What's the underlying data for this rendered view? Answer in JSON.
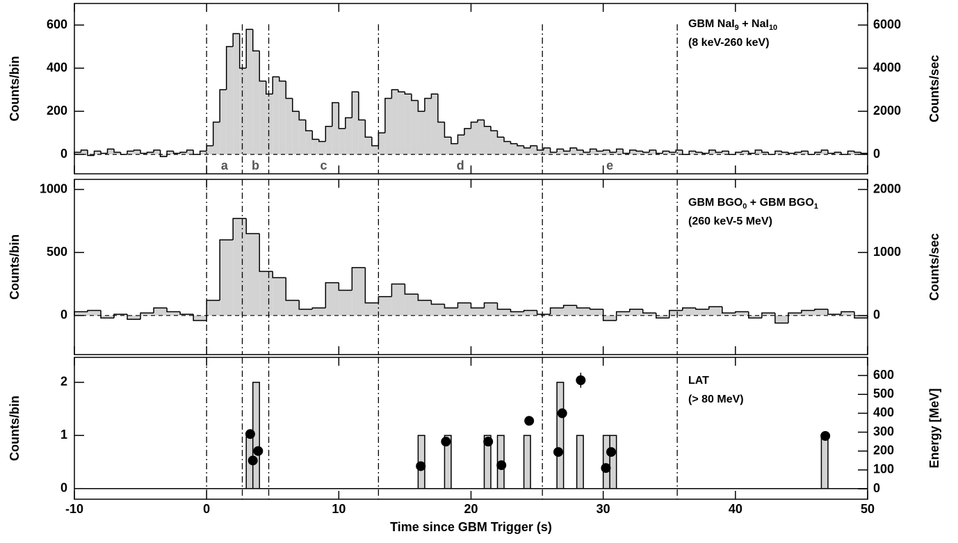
{
  "chart_data": [
    {
      "type": "histogram",
      "label": [
        {
          "text": "GBM NaI"
        },
        {
          "text": "9",
          "sub": true
        },
        {
          "text": " + NaI"
        },
        {
          "text": "10",
          "sub": true
        }
      ],
      "sublabel": "(8 keV-260 keV)",
      "ylabel": "Counts/bin",
      "y2label": "Counts/sec",
      "xlim": [
        -10,
        50
      ],
      "xticks": [
        -10,
        0,
        10,
        20,
        30,
        40,
        50
      ],
      "ylim": [
        -90,
        700
      ],
      "yticks": [
        0,
        200,
        400,
        600
      ],
      "y2lim": [
        -900,
        7000
      ],
      "y2ticks": [
        0,
        2000,
        4000,
        6000
      ],
      "color": "#d3d3d3",
      "intervals": {
        "edges": [
          0,
          2.7,
          4.7,
          13,
          25.4,
          35.6
        ],
        "labels": [
          "a",
          "b",
          "c",
          "d",
          "e"
        ]
      },
      "bins": [
        -10,
        -9.5,
        -9,
        -8.5,
        -8,
        -7.5,
        -7,
        -6.5,
        -6,
        -5.5,
        -5,
        -4.5,
        -4,
        -3.5,
        -3,
        -2.5,
        -2,
        -1.5,
        -1,
        -0.5,
        0,
        0.5,
        1,
        1.5,
        2,
        2.5,
        3,
        3.5,
        4,
        4.5,
        5,
        5.5,
        6,
        6.5,
        7,
        7.5,
        8,
        8.5,
        9,
        9.5,
        10,
        10.5,
        11,
        11.5,
        12,
        12.5,
        13,
        13.5,
        14,
        14.5,
        15,
        15.5,
        16,
        16.5,
        17,
        17.5,
        18,
        18.5,
        19,
        19.5,
        20,
        20.5,
        21,
        21.5,
        22,
        22.5,
        23,
        23.5,
        24,
        24.5,
        25,
        25.5,
        26,
        26.5,
        27,
        27.5,
        28,
        28.5,
        29,
        29.5,
        30,
        30.5,
        31,
        31.5,
        32,
        32.5,
        33,
        33.5,
        34,
        34.5,
        35,
        35.5,
        36,
        36.5,
        37,
        37.5,
        38,
        38.5,
        39,
        39.5,
        40,
        40.5,
        41,
        41.5,
        42,
        42.5,
        43,
        43.5,
        44,
        44.5,
        45,
        45.5,
        46,
        46.5,
        47,
        47.5,
        48,
        48.5,
        49,
        49.5,
        50
      ],
      "values": [
        10,
        20,
        -5,
        15,
        5,
        25,
        10,
        0,
        15,
        20,
        5,
        10,
        20,
        -10,
        15,
        5,
        10,
        20,
        0,
        15,
        40,
        150,
        300,
        500,
        560,
        400,
        580,
        480,
        340,
        280,
        360,
        340,
        260,
        200,
        160,
        110,
        70,
        60,
        130,
        240,
        120,
        170,
        290,
        160,
        80,
        40,
        100,
        260,
        300,
        290,
        280,
        250,
        200,
        260,
        280,
        150,
        80,
        50,
        90,
        120,
        150,
        160,
        130,
        110,
        80,
        60,
        50,
        40,
        30,
        40,
        20,
        30,
        10,
        25,
        15,
        30,
        20,
        10,
        25,
        15,
        20,
        10,
        25,
        5,
        20,
        15,
        10,
        20,
        5,
        15,
        10,
        20,
        0,
        15,
        10,
        5,
        20,
        10,
        15,
        0,
        10,
        15,
        5,
        20,
        10,
        0,
        15,
        10,
        5,
        10,
        15,
        0,
        10,
        20,
        5,
        10,
        0,
        15,
        10,
        5
      ]
    },
    {
      "type": "histogram",
      "label": [
        {
          "text": "GBM BGO"
        },
        {
          "text": "0",
          "sub": true
        },
        {
          "text": " + GBM BGO"
        },
        {
          "text": "1",
          "sub": true
        }
      ],
      "sublabel": "(260 keV-5 MeV)",
      "ylabel": "Counts/bin",
      "y2label": "Counts/sec",
      "xlim": [
        -10,
        50
      ],
      "xticks": [
        -10,
        0,
        10,
        20,
        30,
        40,
        50
      ],
      "ylim": [
        -310,
        1080
      ],
      "yticks": [
        0,
        500,
        1000
      ],
      "y2lim": [
        -620,
        2160
      ],
      "y2ticks": [
        0,
        1000,
        2000
      ],
      "color": "#d3d3d3",
      "bins": [
        -10,
        -9,
        -8,
        -7,
        -6,
        -5,
        -4,
        -3,
        -2,
        -1,
        0,
        1,
        2,
        3,
        4,
        5,
        6,
        7,
        8,
        9,
        10,
        11,
        12,
        13,
        14,
        15,
        16,
        17,
        18,
        19,
        20,
        21,
        22,
        23,
        24,
        25,
        26,
        27,
        28,
        29,
        30,
        31,
        32,
        33,
        34,
        35,
        36,
        37,
        38,
        39,
        40,
        41,
        42,
        43,
        44,
        45,
        46,
        47,
        48,
        49,
        50
      ],
      "values": [
        30,
        40,
        -20,
        10,
        -30,
        20,
        60,
        30,
        10,
        -40,
        120,
        600,
        770,
        650,
        350,
        300,
        120,
        50,
        60,
        260,
        200,
        380,
        100,
        150,
        250,
        170,
        120,
        90,
        60,
        100,
        60,
        100,
        50,
        30,
        40,
        10,
        60,
        80,
        60,
        50,
        -40,
        30,
        50,
        20,
        -20,
        40,
        60,
        50,
        70,
        20,
        30,
        -20,
        20,
        -60,
        20,
        40,
        50,
        10,
        30,
        -20
      ]
    },
    {
      "type": "histogram",
      "label": [
        {
          "text": "LAT"
        }
      ],
      "sublabel": "(> 80 MeV)",
      "ylabel": "Counts/bin",
      "y2label": "Energy [MeV]",
      "xlabel": "Time since GBM Trigger (s)",
      "xlim": [
        -10,
        50
      ],
      "xticks": [
        -10,
        0,
        10,
        20,
        30,
        40,
        50
      ],
      "ylim": [
        -0.2,
        2.47
      ],
      "yticks": [
        0,
        1,
        2
      ],
      "y2lim": [
        -55,
        696
      ],
      "y2ticks": [
        0,
        100,
        200,
        300,
        400,
        500,
        600
      ],
      "color": "#d3d3d3",
      "bins": [
        -10,
        -9.5,
        -9,
        -8.5,
        -8,
        -7.5,
        -7,
        -6.5,
        -6,
        -5.5,
        -5,
        -4.5,
        -4,
        -3.5,
        -3,
        -2.5,
        -2,
        -1.5,
        -1,
        -0.5,
        0,
        0.5,
        1,
        1.5,
        2,
        2.5,
        3,
        3.5,
        4,
        4.5,
        5,
        5.5,
        6,
        6.5,
        7,
        7.5,
        8,
        8.5,
        9,
        9.5,
        10,
        10.5,
        11,
        11.5,
        12,
        12.5,
        13,
        13.5,
        14,
        14.5,
        15,
        15.5,
        16,
        16.5,
        17,
        17.5,
        18,
        18.5,
        19,
        19.5,
        20,
        20.5,
        21,
        21.5,
        22,
        22.5,
        23,
        23.5,
        24,
        24.5,
        25,
        25.5,
        26,
        26.5,
        27,
        27.5,
        28,
        28.5,
        29,
        29.5,
        30,
        30.5,
        31,
        31.5,
        32,
        32.5,
        33,
        33.5,
        34,
        34.5,
        35,
        35.5,
        36,
        36.5,
        37,
        37.5,
        38,
        38.5,
        39,
        39.5,
        40,
        40.5,
        41,
        41.5,
        42,
        42.5,
        43,
        43.5,
        44,
        44.5,
        45,
        45.5,
        46,
        46.5,
        47,
        47.5,
        48,
        48.5,
        49,
        49.5,
        50
      ],
      "values": [
        0,
        0,
        0,
        0,
        0,
        0,
        0,
        0,
        0,
        0,
        0,
        0,
        0,
        0,
        0,
        0,
        0,
        0,
        0,
        0,
        0,
        0,
        0,
        0,
        0,
        0,
        1,
        2,
        0,
        0,
        0,
        0,
        0,
        0,
        0,
        0,
        0,
        0,
        0,
        0,
        0,
        0,
        0,
        0,
        0,
        0,
        0,
        0,
        0,
        0,
        0,
        0,
        1,
        0,
        0,
        0,
        1,
        0,
        0,
        0,
        0,
        0,
        1,
        0,
        1,
        0,
        0,
        0,
        1,
        0,
        0,
        0,
        0,
        2,
        0,
        0,
        1,
        0,
        0,
        0,
        1,
        1,
        0,
        0,
        0,
        0,
        0,
        0,
        0,
        0,
        0,
        0,
        0,
        0,
        0,
        0,
        0,
        0,
        0,
        0,
        0,
        0,
        0,
        0,
        0,
        0,
        0,
        0,
        0,
        0,
        0,
        0,
        0,
        1,
        0,
        0,
        0,
        0,
        0,
        0
      ],
      "photons": {
        "x": [
          3.3,
          3.5,
          3.9,
          16.2,
          18.1,
          21.3,
          22.3,
          24.4,
          26.6,
          26.9,
          28.3,
          30.2,
          30.6,
          46.8
        ],
        "energy": [
          290,
          150,
          200,
          120,
          250,
          250,
          125,
          360,
          195,
          400,
          575,
          110,
          195,
          280
        ],
        "errors": [
          20,
          10,
          10,
          10,
          10,
          10,
          10,
          25,
          10,
          25,
          40,
          10,
          10,
          20
        ]
      }
    }
  ]
}
